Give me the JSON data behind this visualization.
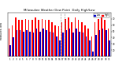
{
  "title": "Milwaukee Weather Dew Point  Daily High/Low",
  "bar_width": 0.38,
  "background_color": "#ffffff",
  "high_color": "#ff0000",
  "low_color": "#0000cc",
  "highs": [
    55,
    60,
    72,
    68,
    68,
    70,
    68,
    68,
    72,
    68,
    70,
    68,
    68,
    65,
    60,
    58,
    65,
    70,
    72,
    65,
    72,
    68,
    65,
    60,
    55,
    42,
    65,
    70,
    72,
    68,
    55
  ],
  "lows": [
    28,
    40,
    52,
    52,
    50,
    52,
    50,
    48,
    55,
    50,
    55,
    52,
    50,
    48,
    42,
    36,
    48,
    52,
    55,
    48,
    55,
    50,
    48,
    42,
    36,
    18,
    45,
    52,
    55,
    52,
    35
  ],
  "xlabels": [
    "1",
    "2",
    "3",
    "4",
    "5",
    "6",
    "7",
    "8",
    "9",
    "10",
    "11",
    "12",
    "13",
    "14",
    "15",
    "16",
    "17",
    "18",
    "19",
    "20",
    "21",
    "22",
    "23",
    "24",
    "25",
    "26",
    "27",
    "28",
    "29",
    "30",
    "31"
  ],
  "ylim": [
    10,
    80
  ],
  "yticks": [
    20,
    30,
    40,
    50,
    60,
    70
  ],
  "ytick_labels": [
    "20",
    "30",
    "40",
    "50",
    "60",
    "70"
  ],
  "dashed_lines_at": [
    15.5,
    16.5
  ],
  "legend_high": "High",
  "legend_low": "Low"
}
